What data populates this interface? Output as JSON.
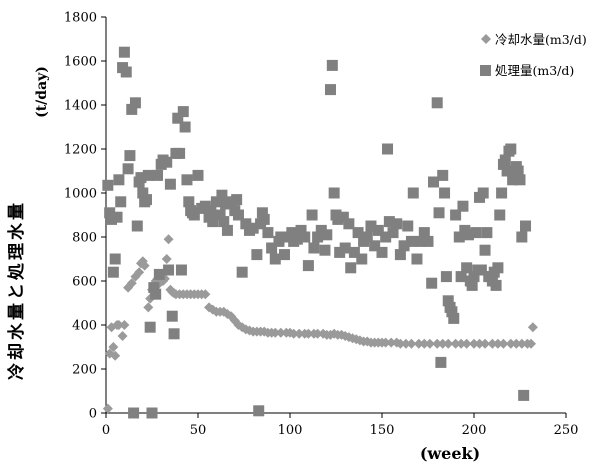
{
  "chart_data": {
    "type": "scatter",
    "ylabel": "冷却水量と処理水量",
    "yunit": "(t/day)",
    "xlabel": "(week)",
    "xlim": [
      0,
      250
    ],
    "ylim": [
      0,
      1800
    ],
    "xticks": [
      "0",
      "50",
      "100",
      "150",
      "200",
      "250"
    ],
    "yticks": [
      "0",
      "200",
      "400",
      "600",
      "800",
      "1000",
      "1200",
      "1400",
      "1600",
      "1800"
    ],
    "legend_position": "top-right",
    "grid": false,
    "series": [
      {
        "name": "冷却水量(m3/d)",
        "marker": "diamond",
        "color": "#9a9a9a",
        "points": [
          [
            1,
            20
          ],
          [
            2,
            270
          ],
          [
            3,
            390
          ],
          [
            4,
            300
          ],
          [
            5,
            260
          ],
          [
            6,
            400
          ],
          [
            7,
            400
          ],
          [
            9,
            350
          ],
          [
            10,
            400
          ],
          [
            12,
            570
          ],
          [
            14,
            590
          ],
          [
            16,
            620
          ],
          [
            18,
            640
          ],
          [
            19,
            680
          ],
          [
            20,
            690
          ],
          [
            21,
            670
          ],
          [
            23,
            480
          ],
          [
            24,
            520
          ],
          [
            25,
            560
          ],
          [
            27,
            600
          ],
          [
            28,
            610
          ],
          [
            29,
            590
          ],
          [
            30,
            620
          ],
          [
            31,
            600
          ],
          [
            32,
            610
          ],
          [
            33,
            700
          ],
          [
            34,
            790
          ],
          [
            35,
            560
          ],
          [
            36,
            550
          ],
          [
            37,
            545
          ],
          [
            38,
            540
          ],
          [
            40,
            540
          ],
          [
            42,
            540
          ],
          [
            44,
            540
          ],
          [
            46,
            540
          ],
          [
            48,
            540
          ],
          [
            50,
            540
          ],
          [
            52,
            540
          ],
          [
            54,
            540
          ],
          [
            56,
            480
          ],
          [
            58,
            470
          ],
          [
            60,
            460
          ],
          [
            62,
            460
          ],
          [
            64,
            460
          ],
          [
            66,
            450
          ],
          [
            68,
            440
          ],
          [
            70,
            420
          ],
          [
            72,
            400
          ],
          [
            74,
            390
          ],
          [
            76,
            380
          ],
          [
            78,
            375
          ],
          [
            80,
            370
          ],
          [
            82,
            370
          ],
          [
            84,
            370
          ],
          [
            86,
            370
          ],
          [
            88,
            365
          ],
          [
            90,
            365
          ],
          [
            92,
            365
          ],
          [
            95,
            365
          ],
          [
            98,
            365
          ],
          [
            100,
            365
          ],
          [
            102,
            360
          ],
          [
            105,
            360
          ],
          [
            108,
            360
          ],
          [
            110,
            360
          ],
          [
            113,
            360
          ],
          [
            115,
            360
          ],
          [
            118,
            360
          ],
          [
            120,
            355
          ],
          [
            122,
            355
          ],
          [
            124,
            360
          ],
          [
            126,
            355
          ],
          [
            128,
            355
          ],
          [
            130,
            350
          ],
          [
            132,
            345
          ],
          [
            134,
            340
          ],
          [
            136,
            335
          ],
          [
            138,
            330
          ],
          [
            140,
            325
          ],
          [
            142,
            325
          ],
          [
            144,
            320
          ],
          [
            146,
            320
          ],
          [
            148,
            320
          ],
          [
            150,
            320
          ],
          [
            152,
            320
          ],
          [
            155,
            320
          ],
          [
            158,
            320
          ],
          [
            160,
            315
          ],
          [
            163,
            315
          ],
          [
            166,
            315
          ],
          [
            170,
            315
          ],
          [
            173,
            315
          ],
          [
            176,
            315
          ],
          [
            180,
            315
          ],
          [
            183,
            315
          ],
          [
            186,
            315
          ],
          [
            190,
            315
          ],
          [
            193,
            315
          ],
          [
            196,
            315
          ],
          [
            200,
            315
          ],
          [
            203,
            315
          ],
          [
            206,
            315
          ],
          [
            210,
            315
          ],
          [
            213,
            315
          ],
          [
            216,
            315
          ],
          [
            220,
            315
          ],
          [
            223,
            315
          ],
          [
            226,
            315
          ],
          [
            229,
            315
          ],
          [
            231,
            315
          ],
          [
            232,
            390
          ]
        ]
      },
      {
        "name": "処理量(m3/d)",
        "marker": "square",
        "color": "#808080",
        "points": [
          [
            1,
            1035
          ],
          [
            2,
            910
          ],
          [
            3,
            880
          ],
          [
            4,
            640
          ],
          [
            5,
            700
          ],
          [
            6,
            890
          ],
          [
            7,
            1060
          ],
          [
            8,
            960
          ],
          [
            9,
            1570
          ],
          [
            10,
            1640
          ],
          [
            11,
            1550
          ],
          [
            12,
            1110
          ],
          [
            13,
            1170
          ],
          [
            14,
            1380
          ],
          [
            15,
            0
          ],
          [
            16,
            1410
          ],
          [
            17,
            850
          ],
          [
            18,
            1050
          ],
          [
            19,
            1070
          ],
          [
            20,
            1000
          ],
          [
            21,
            960
          ],
          [
            22,
            970
          ],
          [
            23,
            1080
          ],
          [
            24,
            390
          ],
          [
            25,
            0
          ],
          [
            26,
            570
          ],
          [
            27,
            540
          ],
          [
            28,
            1080
          ],
          [
            29,
            630
          ],
          [
            30,
            1130
          ],
          [
            31,
            1150
          ],
          [
            33,
            1140
          ],
          [
            34,
            650
          ],
          [
            35,
            1040
          ],
          [
            36,
            440
          ],
          [
            37,
            360
          ],
          [
            38,
            1180
          ],
          [
            39,
            1340
          ],
          [
            40,
            1180
          ],
          [
            41,
            650
          ],
          [
            42,
            1370
          ],
          [
            43,
            1300
          ],
          [
            44,
            1060
          ],
          [
            45,
            960
          ],
          [
            46,
            920
          ],
          [
            47,
            910
          ],
          [
            48,
            900
          ],
          [
            50,
            1080
          ],
          [
            52,
            930
          ],
          [
            54,
            940
          ],
          [
            56,
            890
          ],
          [
            57,
            920
          ],
          [
            58,
            870
          ],
          [
            60,
            960
          ],
          [
            62,
            900
          ],
          [
            63,
            990
          ],
          [
            64,
            870
          ],
          [
            65,
            950
          ],
          [
            66,
            830
          ],
          [
            68,
            960
          ],
          [
            70,
            920
          ],
          [
            71,
            970
          ],
          [
            72,
            900
          ],
          [
            74,
            640
          ],
          [
            76,
            860
          ],
          [
            78,
            830
          ],
          [
            80,
            840
          ],
          [
            82,
            720
          ],
          [
            83,
            10
          ],
          [
            84,
            860
          ],
          [
            85,
            910
          ],
          [
            86,
            880
          ],
          [
            88,
            820
          ],
          [
            90,
            750
          ],
          [
            92,
            700
          ],
          [
            94,
            780
          ],
          [
            95,
            800
          ],
          [
            97,
            720
          ],
          [
            99,
            800
          ],
          [
            101,
            820
          ],
          [
            102,
            780
          ],
          [
            104,
            790
          ],
          [
            106,
            830
          ],
          [
            108,
            800
          ],
          [
            110,
            670
          ],
          [
            112,
            900
          ],
          [
            113,
            750
          ],
          [
            115,
            800
          ],
          [
            117,
            830
          ],
          [
            119,
            740
          ],
          [
            120,
            810
          ],
          [
            122,
            1470
          ],
          [
            123,
            1580
          ],
          [
            124,
            1000
          ],
          [
            125,
            900
          ],
          [
            126,
            880
          ],
          [
            127,
            730
          ],
          [
            129,
            890
          ],
          [
            130,
            750
          ],
          [
            132,
            860
          ],
          [
            133,
            660
          ],
          [
            135,
            730
          ],
          [
            137,
            820
          ],
          [
            139,
            700
          ],
          [
            140,
            780
          ],
          [
            142,
            800
          ],
          [
            144,
            850
          ],
          [
            146,
            760
          ],
          [
            148,
            830
          ],
          [
            150,
            730
          ],
          [
            152,
            800
          ],
          [
            153,
            1200
          ],
          [
            154,
            870
          ],
          [
            156,
            820
          ],
          [
            158,
            860
          ],
          [
            160,
            720
          ],
          [
            162,
            760
          ],
          [
            164,
            850
          ],
          [
            166,
            780
          ],
          [
            167,
            1000
          ],
          [
            169,
            700
          ],
          [
            171,
            780
          ],
          [
            173,
            820
          ],
          [
            175,
            780
          ],
          [
            177,
            590
          ],
          [
            178,
            1050
          ],
          [
            180,
            1410
          ],
          [
            181,
            910
          ],
          [
            182,
            230
          ],
          [
            183,
            1080
          ],
          [
            184,
            1000
          ],
          [
            185,
            620
          ],
          [
            186,
            510
          ],
          [
            187,
            480
          ],
          [
            188,
            460
          ],
          [
            189,
            430
          ],
          [
            190,
            900
          ],
          [
            192,
            800
          ],
          [
            193,
            620
          ],
          [
            194,
            940
          ],
          [
            195,
            830
          ],
          [
            196,
            660
          ],
          [
            197,
            810
          ],
          [
            198,
            600
          ],
          [
            199,
            580
          ],
          [
            200,
            620
          ],
          [
            201,
            820
          ],
          [
            202,
            650
          ],
          [
            203,
            980
          ],
          [
            204,
            650
          ],
          [
            205,
            1000
          ],
          [
            206,
            740
          ],
          [
            207,
            820
          ],
          [
            208,
            620
          ],
          [
            209,
            620
          ],
          [
            210,
            600
          ],
          [
            211,
            640
          ],
          [
            212,
            580
          ],
          [
            213,
            660
          ],
          [
            214,
            900
          ],
          [
            215,
            1000
          ],
          [
            216,
            1130
          ],
          [
            217,
            1150
          ],
          [
            218,
            1100
          ],
          [
            219,
            1190
          ],
          [
            220,
            1200
          ],
          [
            221,
            1060
          ],
          [
            222,
            1080
          ],
          [
            223,
            1120
          ],
          [
            224,
            1100
          ],
          [
            225,
            1060
          ],
          [
            226,
            800
          ],
          [
            227,
            80
          ],
          [
            228,
            850
          ]
        ]
      }
    ]
  }
}
